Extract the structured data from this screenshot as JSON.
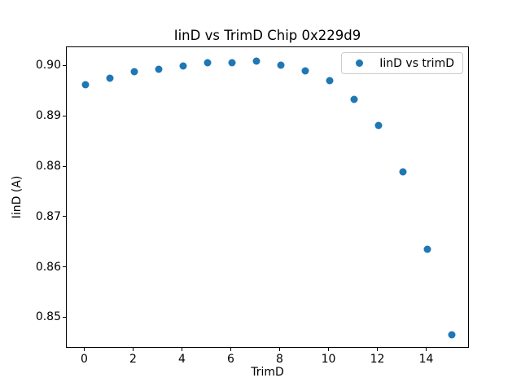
{
  "chart_data": {
    "type": "scatter",
    "title": "IinD vs TrimD Chip 0x229d9",
    "xlabel": "TrimD",
    "ylabel": "IinD (A)",
    "legend_label": "IinD vs trimD",
    "legend_position": "upper right",
    "marker_color": "#1f77b4",
    "x": [
      0,
      1,
      2,
      3,
      4,
      5,
      6,
      7,
      8,
      9,
      10,
      11,
      12,
      13,
      14,
      15
    ],
    "y": [
      0.8964,
      0.8977,
      0.8989,
      0.8994,
      0.9001,
      0.9008,
      0.9008,
      0.901,
      0.9002,
      0.8991,
      0.8972,
      0.8934,
      0.8883,
      0.8791,
      0.8636,
      0.8466
    ],
    "xlim": [
      -0.75,
      15.75
    ],
    "ylim": [
      0.8439,
      0.9038
    ],
    "xticks": [
      0,
      2,
      4,
      6,
      8,
      10,
      12,
      14
    ],
    "yticks": [
      0.85,
      0.86,
      0.87,
      0.88,
      0.89,
      0.9
    ],
    "ytick_decimals": 2,
    "grid": false
  }
}
